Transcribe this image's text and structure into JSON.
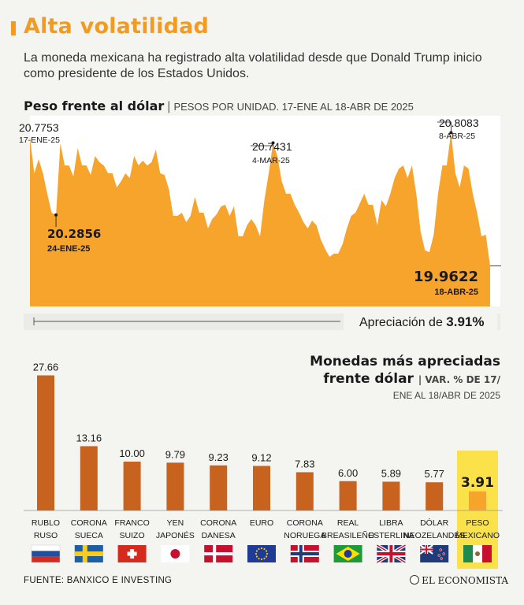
{
  "title": "Alta volatilidad",
  "subtitle": "La moneda mexicana ha registrado alta volatilidad desde que Donald Trump inicio como presidente de los Estados Unidos.",
  "chart_line": {
    "title": "Peso frente al dólar",
    "subtitle": "PESOS POR UNIDAD. 17-ENE AL 18-ABR DE 2025",
    "color": "#f6a42c",
    "annotations": [
      {
        "value": "20.7753",
        "date": "17-ENE-25"
      },
      {
        "value": "20.2856",
        "date": "24-ENE-25"
      },
      {
        "value": "20.7431",
        "date": "4-MAR-25"
      },
      {
        "value": "20.8083",
        "date": "8-ABR-25"
      },
      {
        "value": "19.9622",
        "date": "18-ABR-25"
      }
    ],
    "appreciation_label": "Apreciación de",
    "appreciation_value": "3.91%"
  },
  "chart_bar": {
    "title_line1": "Monedas más apreciadas",
    "title_line2": "frente dólar",
    "subtitle_line1": "VAR. % DE 17/",
    "subtitle_line2": "ENE AL 18/ABR DE 2025",
    "bar_color": "#c8621f",
    "highlight_color": "#f6a42c",
    "highlight_bg": "#fbe24a"
  },
  "chart_data": [
    {
      "type": "area",
      "title": "Peso frente al dólar",
      "xlabel": "",
      "ylabel": "PESOS POR UNIDAD",
      "ylim": [
        19.75,
        20.85
      ],
      "series": [
        {
          "values": [
            20.7753,
            20.55,
            20.64,
            20.55,
            20.42,
            20.3,
            20.2856,
            20.74,
            20.6,
            20.6,
            20.53,
            20.71,
            20.6,
            20.6,
            20.54,
            20.66,
            20.62,
            20.6,
            20.55,
            20.55,
            20.46,
            20.5,
            20.55,
            20.52,
            20.66,
            20.6,
            20.63,
            20.6,
            20.62,
            20.7,
            20.55,
            20.54,
            20.45,
            20.28,
            20.28,
            20.3,
            20.24,
            20.28,
            20.4,
            20.3,
            20.3,
            20.2,
            20.26,
            20.29,
            20.34,
            20.35,
            20.28,
            20.34,
            20.15,
            20.15,
            20.22,
            20.26,
            20.22,
            20.15,
            20.38,
            20.55,
            20.7431,
            20.66,
            20.5,
            20.42,
            20.42,
            20.35,
            20.3,
            20.24,
            20.2,
            20.25,
            20.22,
            20.13,
            20.07,
            20.02,
            20.04,
            20.04,
            20.1,
            20.2,
            20.28,
            20.3,
            20.36,
            20.42,
            20.35,
            20.35,
            20.22,
            20.38,
            20.34,
            20.42,
            20.52,
            20.58,
            20.6,
            20.52,
            20.6,
            20.42,
            20.18,
            20.06,
            20.05,
            20.16,
            20.42,
            20.6,
            20.6,
            20.8083,
            20.55,
            20.46,
            20.6,
            20.58,
            20.42,
            20.3,
            20.15,
            20.16,
            19.9622
          ]
        }
      ]
    },
    {
      "type": "bar",
      "title": "Monedas más apreciadas frente dólar",
      "xlabel": "",
      "ylabel": "VAR. % DE 17/ENE AL 18/ABR DE 2025",
      "categories": [
        [
          "RUBLO",
          "RUSO"
        ],
        [
          "CORONA",
          "SUECA"
        ],
        [
          "FRANCO",
          "SUIZO"
        ],
        [
          "YEN",
          "JAPONÉS"
        ],
        [
          "CORONA",
          "DANESA"
        ],
        [
          "EURO",
          ""
        ],
        [
          "CORONA",
          "NORUEGA"
        ],
        [
          "REAL",
          "BREASILEÑO"
        ],
        [
          "LIBRA",
          "ESTERLINA"
        ],
        [
          "DÓLAR",
          "NEOZELANDÉS"
        ],
        [
          "PESO",
          "MEXICANO"
        ]
      ],
      "values": [
        27.66,
        13.16,
        10.0,
        9.79,
        9.23,
        9.12,
        7.83,
        6.0,
        5.89,
        5.77,
        3.91
      ],
      "labels": [
        "27.66",
        "13.16",
        "10.00",
        "9.79",
        "9.23",
        "9.12",
        "7.83",
        "6.00",
        "5.89",
        "5.77",
        "3.91"
      ],
      "flags": [
        "russia-flag",
        "sweden-flag",
        "switzerland-flag",
        "japan-flag",
        "denmark-flag",
        "eu-flag",
        "norway-flag",
        "brazil-flag",
        "uk-flag",
        "new-zealand-flag",
        "mexico-flag"
      ],
      "ylim": [
        0,
        30
      ]
    }
  ],
  "footer": {
    "source": "FUENTE: BANXICO E INVESTING",
    "brand": "EL ECONOMISTA"
  }
}
